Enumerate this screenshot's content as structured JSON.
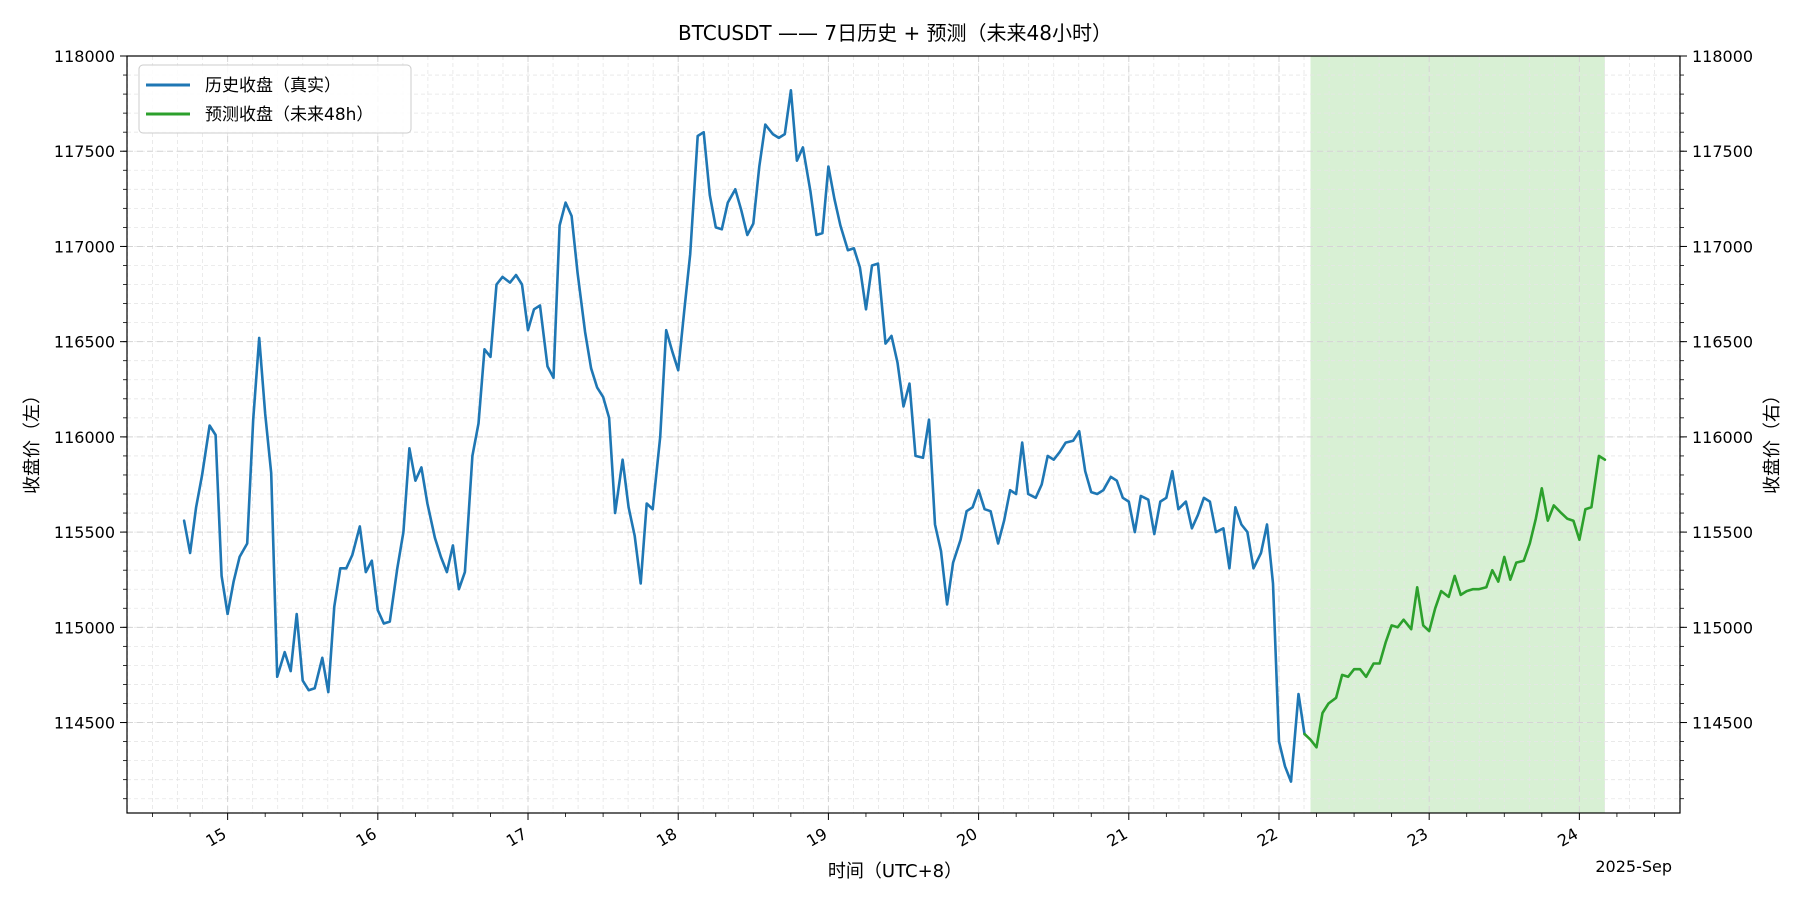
{
  "chart_data": {
    "type": "line",
    "title": "BTCUSDT —— 7日历史 + 预测（未来48小时）",
    "xlabel": "时间（UTC+8）",
    "ylabel_left": "收盘价（左）",
    "ylabel_right": "收盘价（右）",
    "x_offset_label": "2025-Sep",
    "x_unit": "day of September 2025 (UTC+8)",
    "xlim": [
      14.33,
      24.67
    ],
    "ylim": [
      114025,
      118000
    ],
    "y_ticks": [
      114500,
      115000,
      115500,
      116000,
      116500,
      117000,
      117500,
      118000
    ],
    "x_ticks": [
      15,
      16,
      17,
      18,
      19,
      20,
      21,
      22,
      23,
      24
    ],
    "x_tick_labels": [
      "15",
      "16",
      "17",
      "18",
      "19",
      "20",
      "21",
      "22",
      "23",
      "24"
    ],
    "grid": true,
    "legend_position": "top-left",
    "forecast_region": {
      "x_start": 22.21,
      "x_end": 24.17,
      "color": "#d8f0d4"
    },
    "series": [
      {
        "name": "历史收盘（真实）",
        "color": "#1f77b4",
        "x": [
          14.71,
          14.75,
          14.79,
          14.83,
          14.88,
          14.92,
          14.96,
          15.0,
          15.04,
          15.08,
          15.13,
          15.17,
          15.21,
          15.25,
          15.29,
          15.33,
          15.38,
          15.42,
          15.46,
          15.5,
          15.54,
          15.58,
          15.63,
          15.67,
          15.71,
          15.75,
          15.79,
          15.83,
          15.88,
          15.92,
          15.96,
          16.0,
          16.04,
          16.08,
          16.13,
          16.17,
          16.21,
          16.25,
          16.29,
          16.33,
          16.38,
          16.42,
          16.46,
          16.5,
          16.54,
          16.58,
          16.63,
          16.67,
          16.71,
          16.75,
          16.79,
          16.83,
          16.88,
          16.92,
          16.96,
          17.0,
          17.04,
          17.08,
          17.13,
          17.17,
          17.21,
          17.25,
          17.29,
          17.33,
          17.38,
          17.42,
          17.46,
          17.5,
          17.54,
          17.58,
          17.63,
          17.67,
          17.71,
          17.75,
          17.79,
          17.83,
          17.88,
          17.92,
          17.96,
          18.0,
          18.04,
          18.08,
          18.13,
          18.17,
          18.21,
          18.25,
          18.29,
          18.33,
          18.38,
          18.42,
          18.46,
          18.5,
          18.54,
          18.58,
          18.63,
          18.67,
          18.71,
          18.75,
          18.79,
          18.83,
          18.88,
          18.92,
          18.96,
          19.0,
          19.04,
          19.08,
          19.13,
          19.17,
          19.21,
          19.25,
          19.29,
          19.33,
          19.38,
          19.42,
          19.46,
          19.5,
          19.54,
          19.58,
          19.63,
          19.67,
          19.71,
          19.75,
          19.79,
          19.83,
          19.88,
          19.92,
          19.96,
          20.0,
          20.04,
          20.08,
          20.13,
          20.17,
          20.21,
          20.25,
          20.29,
          20.33,
          20.38,
          20.42,
          20.46,
          20.5,
          20.54,
          20.58,
          20.63,
          20.67,
          20.71,
          20.75,
          20.79,
          20.83,
          20.88,
          20.92,
          20.96,
          21.0,
          21.04,
          21.08,
          21.13,
          21.17,
          21.21,
          21.25,
          21.29,
          21.33,
          21.38,
          21.42,
          21.46,
          21.5,
          21.54,
          21.58,
          21.63,
          21.67,
          21.71,
          21.75,
          21.79,
          21.83,
          21.88,
          21.92,
          21.96,
          22.0,
          22.04,
          22.08,
          22.13,
          22.17
        ],
        "values": [
          115560,
          115390,
          115630,
          115800,
          116060,
          116010,
          115270,
          115070,
          115240,
          115370,
          115440,
          116090,
          116520,
          116120,
          115810,
          114740,
          114870,
          114770,
          115070,
          114720,
          114670,
          114680,
          114840,
          114660,
          115110,
          115310,
          115310,
          115380,
          115530,
          115290,
          115350,
          115090,
          115020,
          115030,
          115310,
          115500,
          115940,
          115770,
          115840,
          115650,
          115470,
          115370,
          115290,
          115430,
          115200,
          115290,
          115900,
          116070,
          116460,
          116420,
          116800,
          116840,
          116810,
          116850,
          116800,
          116560,
          116670,
          116690,
          116370,
          116310,
          117110,
          117230,
          117160,
          116860,
          116550,
          116360,
          116260,
          116210,
          116100,
          115600,
          115880,
          115630,
          115480,
          115230,
          115650,
          115620,
          116000,
          116560,
          116450,
          116350,
          116660,
          116960,
          117580,
          117600,
          117270,
          117100,
          117090,
          117230,
          117300,
          117190,
          117060,
          117120,
          117420,
          117640,
          117590,
          117570,
          117590,
          117820,
          117450,
          117520,
          117290,
          117060,
          117070,
          117420,
          117250,
          117110,
          116980,
          116990,
          116890,
          116670,
          116900,
          116910,
          116490,
          116530,
          116390,
          116160,
          116280,
          115900,
          115890,
          116090,
          115540,
          115400,
          115120,
          115340,
          115460,
          115610,
          115630,
          115720,
          115620,
          115610,
          115440,
          115560,
          115720,
          115700,
          115970,
          115700,
          115680,
          115750,
          115900,
          115880,
          115920,
          115970,
          115980,
          116030,
          115820,
          115710,
          115700,
          115720,
          115790,
          115770,
          115680,
          115660,
          115500,
          115690,
          115670,
          115490,
          115660,
          115680,
          115820,
          115620,
          115660,
          115520,
          115590,
          115680,
          115660,
          115500,
          115520,
          115310,
          115630,
          115540,
          115500,
          115310,
          115390,
          115540,
          115230,
          114400,
          114270,
          114190,
          114650,
          114440
        ]
      },
      {
        "name": "预测收盘（未来48h）",
        "color": "#2ca02c",
        "x": [
          22.17,
          22.21,
          22.25,
          22.29,
          22.33,
          22.38,
          22.42,
          22.46,
          22.5,
          22.54,
          22.58,
          22.63,
          22.67,
          22.71,
          22.75,
          22.79,
          22.83,
          22.88,
          22.92,
          22.96,
          23.0,
          23.04,
          23.08,
          23.13,
          23.17,
          23.21,
          23.25,
          23.29,
          23.33,
          23.38,
          23.42,
          23.46,
          23.5,
          23.54,
          23.58,
          23.63,
          23.67,
          23.71,
          23.75,
          23.79,
          23.83,
          23.88,
          23.92,
          23.96,
          24.0,
          24.04,
          24.08,
          24.13,
          24.17
        ],
        "values": [
          114440,
          114410,
          114370,
          114550,
          114600,
          114630,
          114750,
          114740,
          114780,
          114780,
          114740,
          114810,
          114810,
          114920,
          115010,
          115000,
          115040,
          114990,
          115210,
          115010,
          114980,
          115100,
          115190,
          115160,
          115270,
          115170,
          115190,
          115200,
          115200,
          115210,
          115300,
          115240,
          115370,
          115250,
          115340,
          115350,
          115440,
          115570,
          115730,
          115560,
          115640,
          115600,
          115570,
          115560,
          115460,
          115620,
          115630,
          115900,
          115880
        ]
      }
    ]
  }
}
